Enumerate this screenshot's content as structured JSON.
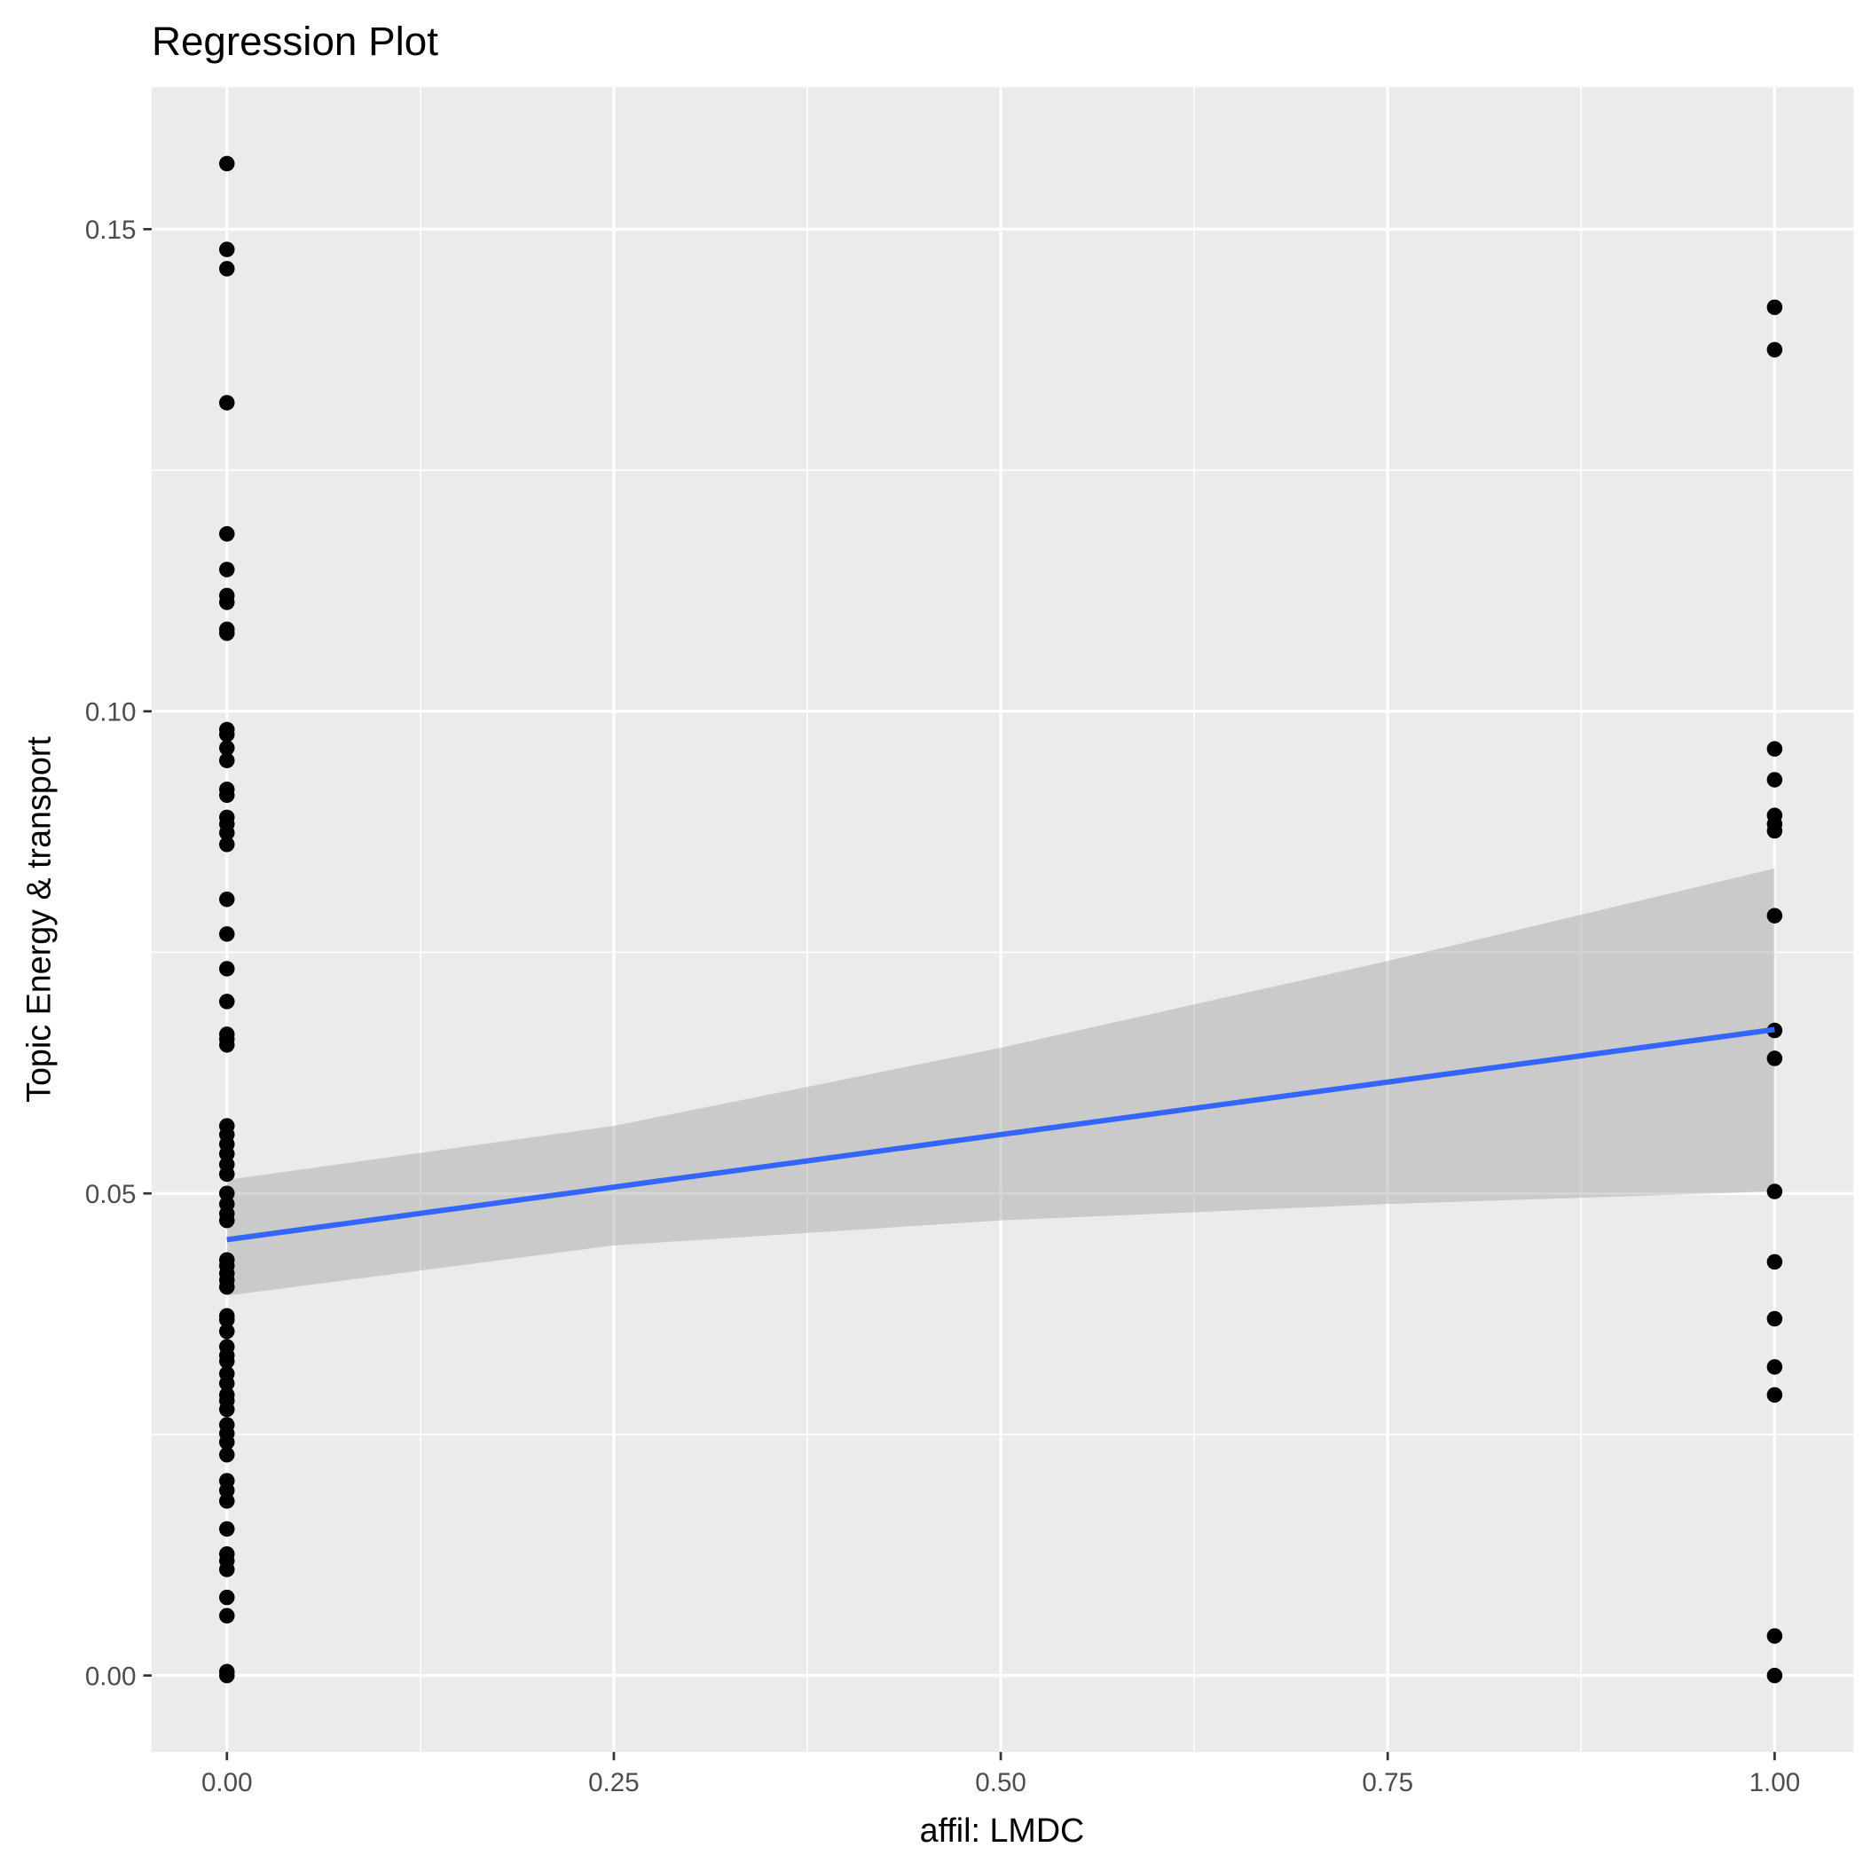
{
  "chart_data": {
    "type": "scatter",
    "title": "Regression Plot",
    "xlabel": "affil: LMDC",
    "ylabel": "Topic Energy & transport",
    "xlim": [
      -0.05,
      1.05
    ],
    "ylim": [
      -0.0078,
      0.1644
    ],
    "x_ticks": [
      0,
      0.25,
      0.5,
      0.75,
      1
    ],
    "x_tick_labels": [
      "0.00",
      "0.25",
      "0.50",
      "0.75",
      "1.00"
    ],
    "y_ticks": [
      0,
      0.05,
      0.1,
      0.15
    ],
    "y_tick_labels": [
      "0.00",
      "0.05",
      "0.10",
      "0.15"
    ],
    "grid": true,
    "points": {
      "x0": [
        0.1568,
        0.1479,
        0.1459,
        0.132,
        0.1184,
        0.1147,
        0.112,
        0.1113,
        0.1085,
        0.1081,
        0.0981,
        0.0976,
        0.0962,
        0.0949,
        0.0919,
        0.0913,
        0.089,
        0.0883,
        0.0874,
        0.0862,
        0.0805,
        0.0769,
        0.0733,
        0.0699,
        0.0665,
        0.066,
        0.0654,
        0.057,
        0.0561,
        0.0551,
        0.0541,
        0.053,
        0.052,
        0.05,
        0.0489,
        0.0479,
        0.0472,
        0.0431,
        0.0425,
        0.0417,
        0.041,
        0.0403,
        0.0373,
        0.0369,
        0.0357,
        0.0341,
        0.0332,
        0.0326,
        0.0313,
        0.0303,
        0.0291,
        0.0285,
        0.0276,
        0.026,
        0.0251,
        0.0242,
        0.0229,
        0.0202,
        0.0192,
        0.0181,
        0.0152,
        0.0126,
        0.0119,
        0.011,
        0.0081,
        0.0062,
        0.0004,
        0.0
      ],
      "x1": [
        0.1419,
        0.1375,
        0.0961,
        0.0929,
        0.0892,
        0.0883,
        0.0876,
        0.0788,
        0.0669,
        0.064,
        0.0502,
        0.0429,
        0.037,
        0.032,
        0.0291,
        0.0041,
        0.0
      ]
    },
    "fit": {
      "intercept": 0.0452,
      "slope": 0.0218,
      "color": "#3366FF"
    },
    "ci_band": {
      "x": [
        0,
        0.25,
        0.5,
        0.75,
        1
      ],
      "lower": [
        0.0394,
        0.0446,
        0.0472,
        0.0489,
        0.0502
      ],
      "upper": [
        0.0514,
        0.057,
        0.0651,
        0.0741,
        0.0837
      ]
    }
  }
}
